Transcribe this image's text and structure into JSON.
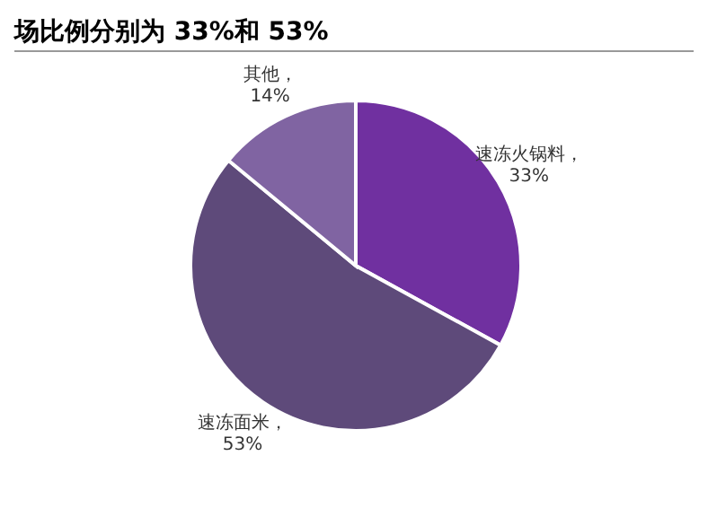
{
  "chart_data": {
    "type": "pie",
    "title": "场比例分别为 33%和 53%",
    "categories": [
      "速冻火锅料",
      "速冻面米",
      "其他"
    ],
    "values": [
      33,
      53,
      14
    ],
    "value_labels": [
      "，33%",
      "，53%",
      "，14%"
    ],
    "colors": [
      "#7030a0",
      "#5e4a7a",
      "#8064a2"
    ],
    "legend": false
  }
}
